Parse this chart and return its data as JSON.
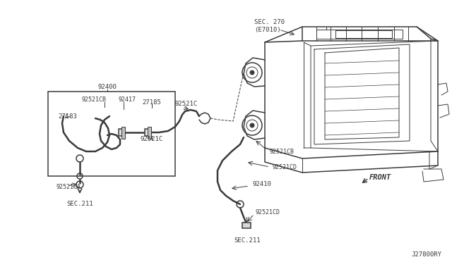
{
  "bg_color": "#ffffff",
  "line_color": "#3a3a3a",
  "lw_thin": 0.7,
  "lw_med": 1.1,
  "lw_thick": 1.8,
  "figsize": [
    6.4,
    3.72
  ],
  "dpi": 100,
  "diagram_id": "J27800RY",
  "labels": {
    "sec270_1": "SEC. 270",
    "sec270_2": "(E7010)",
    "n92400": "92400",
    "n92521CB": "92521CB",
    "n92417": "92417",
    "n27183": "27183",
    "n27185": "27185",
    "n92521C_top": "92521C",
    "n92521C_bot": "92521C",
    "n92521GA": "92521GA",
    "n92521CB_r": "92521CB",
    "n92410": "92410",
    "n92521CD_t": "92521CD",
    "n92521CD_b": "92521CD",
    "sec211_l": "SEC.211",
    "sec211_r": "SEC.211",
    "front": "FRONT"
  }
}
